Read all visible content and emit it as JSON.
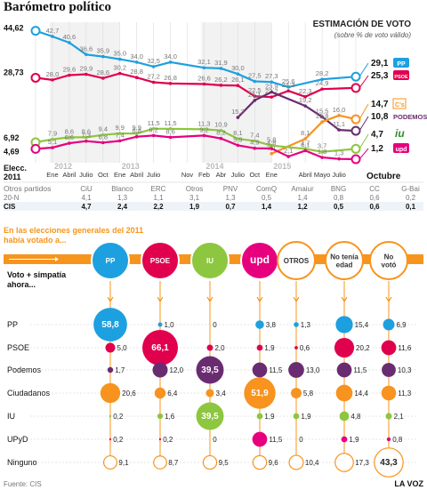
{
  "title": "Barómetro político",
  "estimation_title": "ESTIMACIÓN DE VOTO",
  "estimation_subtitle": "(sobre % de voto válido)",
  "elec_label": "Elecc.",
  "elec_year": "2011",
  "colors": {
    "pp": "#1da0e0",
    "psoe": "#e0004d",
    "podemos": "#6a2c70",
    "cs": "#f7931e",
    "iu": "#8dc63f",
    "upyd": "#e6007e",
    "otros": "#888888",
    "orange": "#f7941d"
  },
  "chart_data": {
    "type": "line",
    "title": "Barómetro político",
    "x": [
      "Elecc. 2011",
      "Ene 2012",
      "Abril",
      "Julio",
      "Oct",
      "Ene 2013",
      "Abril",
      "Julio",
      "Oct",
      "Nov",
      "Feb 2014",
      "Abr",
      "Julio",
      "Oct",
      "Ene 2015",
      "Marzo",
      "Abril",
      "Mayo",
      "Julio",
      "Octubre"
    ],
    "x_ticks": [
      "Elecc. 2011",
      "Ene",
      "Abril",
      "Julio",
      "Oct",
      "Ene",
      "Abril",
      "Julio",
      "Nov",
      "Feb",
      "Abr",
      "Julio",
      "Oct",
      "Ene",
      "Abril",
      "Mayo",
      "Julio",
      "Octubre"
    ],
    "year_labels": [
      "2012",
      "2013",
      "2014",
      "2015"
    ],
    "series": [
      {
        "name": "PP",
        "color": "#1da0e0",
        "end_label": "29,1",
        "start_label": "44,62",
        "values": [
          44.62,
          42.7,
          40.6,
          36.6,
          35.9,
          35.0,
          34.0,
          32.5,
          34.0,
          null,
          32.1,
          31.9,
          30.0,
          27.5,
          27.3,
          25.6,
          null,
          28.2,
          null,
          29.1
        ],
        "labels": [
          "44,62",
          "42,7",
          "40,6",
          "36,6",
          "35,9",
          "35,0",
          "34,0",
          "32,5",
          "34,0",
          "",
          "32,1",
          "31,9",
          "30,0",
          "27,5",
          "27,3",
          "25,6",
          "",
          "28,2",
          "",
          "29,1"
        ]
      },
      {
        "name": "PSOE",
        "color": "#e0004d",
        "end_label": "25,3",
        "start_label": "28,73",
        "values": [
          28.73,
          28.0,
          29.6,
          29.9,
          28.6,
          30.2,
          28.8,
          27.2,
          26.8,
          null,
          26.6,
          26.2,
          26.1,
          22.5,
          22.2,
          24.3,
          22.3,
          24.9,
          null,
          25.3
        ],
        "labels": [
          "28,73",
          "28,0",
          "29,6",
          "29,9",
          "28,6",
          "30,2",
          "28,8",
          "27,2",
          "26,8",
          "",
          "26,6",
          "26,2",
          "26,1",
          "22,5",
          "22,2",
          "24,3",
          "22,3",
          "24,9",
          "",
          "25,3"
        ]
      },
      {
        "name": "Podemos",
        "color": "#6a2c70",
        "end_label": "10,8",
        "values": [
          null,
          null,
          null,
          null,
          null,
          null,
          null,
          null,
          null,
          null,
          null,
          null,
          15.3,
          21.1,
          23.9,
          null,
          19.2,
          15.5,
          11.1,
          10.8
        ],
        "labels": [
          "",
          "",
          "",
          "",
          "",
          "",
          "",
          "",
          "",
          "",
          "",
          "",
          "15,3",
          "21,1",
          "23,9",
          "",
          "19,2",
          "15,5",
          "11,1",
          "10,8"
        ]
      },
      {
        "name": "Cs",
        "color": "#f7931e",
        "end_label": "14,7",
        "values": [
          null,
          null,
          null,
          null,
          null,
          null,
          null,
          null,
          null,
          null,
          null,
          null,
          null,
          null,
          3.1,
          null,
          8.1,
          13.8,
          16.0,
          14.7
        ],
        "labels": [
          "",
          "",
          "",
          "",
          "",
          "",
          "",
          "",
          "",
          "",
          "",
          "",
          "",
          "",
          "3,1",
          "",
          "8,1",
          "13,8",
          "16,0",
          "14,7"
        ]
      },
      {
        "name": "IU",
        "color": "#8dc63f",
        "end_label": "4,7",
        "start_label": "6,92",
        "values": [
          6.92,
          7.9,
          8.6,
          8.6,
          9.4,
          9.9,
          9.9,
          11.5,
          11.5,
          null,
          11.3,
          10.9,
          8.1,
          7.4,
          5.8,
          null,
          4.7,
          3.7,
          null,
          4.7
        ],
        "labels": [
          "6,92",
          "7,9",
          "8,6",
          "8,6",
          "9,4",
          "9,9",
          "9,9",
          "11,5",
          "11,5",
          "",
          "11,3",
          "10,9",
          "8,1",
          "7,4",
          "5,8",
          "",
          "4,7",
          "3,7",
          "",
          "4,7"
        ]
      },
      {
        "name": "UPyD",
        "color": "#e6007e",
        "end_label": "1,2",
        "start_label": "4,69",
        "values": [
          4.69,
          5.1,
          6.6,
          7.3,
          6.8,
          7.4,
          8.8,
          9.2,
          8.6,
          null,
          9.2,
          8.2,
          5.9,
          4.9,
          4.8,
          2.1,
          4.1,
          1.8,
          1.3,
          1.2
        ],
        "labels": [
          "4,69",
          "5,1",
          "6,6",
          "7,3",
          "6,8",
          "7,4",
          "8,8",
          "9,2",
          "8,6",
          "",
          "9,2",
          "8,2",
          "5,9",
          "4,9",
          "4,8",
          "2,1",
          "4,1",
          "1,8",
          "1,3",
          "1,2"
        ]
      }
    ],
    "otros_table": {
      "label": "Otros partidos",
      "headers": [
        "CiU",
        "Blanco",
        "ERC",
        "Otros",
        "PNV",
        "ComQ",
        "Amaiur",
        "BNG",
        "CC",
        "G-Bai"
      ],
      "rows": [
        {
          "label": "20-N",
          "values": [
            "4,1",
            "1,3",
            "1,1",
            "3,1",
            "1,3",
            "0,5",
            "1,4",
            "0,8",
            "0,6",
            "0,2"
          ]
        },
        {
          "label": "CIS",
          "values": [
            "4,7",
            "2,4",
            "2,2",
            "1,9",
            "0,7",
            "1,4",
            "1,2",
            "0,5",
            "0,6",
            "0,1"
          ]
        }
      ]
    },
    "flow": {
      "title_line1": "En las elecciones generales del 2011",
      "title_line2": "había votado a...",
      "vote_label_1": "Voto + simpatía",
      "vote_label_2": "ahora...",
      "columns": [
        "PP",
        "PSOE",
        "IU",
        "UPyD",
        "OTROS",
        "No tenía edad",
        "No votó"
      ],
      "column_lines": [
        [
          "PP"
        ],
        [
          "PSOE"
        ],
        [
          "IU"
        ],
        [
          "upd"
        ],
        [
          "OTROS"
        ],
        [
          "No tenía",
          "edad"
        ],
        [
          "No",
          "votó"
        ]
      ],
      "rows": [
        {
          "party": "PP",
          "color": "#1da0e0",
          "values": [
            "58,8",
            "1,0",
            "0",
            "3,8",
            "1,3",
            "15,4",
            "6,9"
          ]
        },
        {
          "party": "PSOE",
          "color": "#e0004d",
          "values": [
            "5,0",
            "66,1",
            "2,0",
            "1,9",
            "0,6",
            "20,2",
            "11,6"
          ]
        },
        {
          "party": "Podemos",
          "color": "#6a2c70",
          "values": [
            "1,7",
            "12,0",
            "39,5",
            "11,5",
            "13,0",
            "11,5",
            "10,3"
          ]
        },
        {
          "party": "Ciudadanos",
          "color": "#f7931e",
          "values": [
            "20,6",
            "6,4",
            "3,4",
            "51,9",
            "5,8",
            "14,4",
            "11,3"
          ]
        },
        {
          "party": "IU",
          "color": "#8dc63f",
          "values": [
            "0,2",
            "1,6",
            "39,5",
            "1,9",
            "1,9",
            "4,8",
            "2,1"
          ]
        },
        {
          "party": "UPyD",
          "color": "#e6007e",
          "values": [
            "0,2",
            "0,2",
            "0",
            "11,5",
            "0",
            "1,9",
            "0,8"
          ]
        },
        {
          "party": "Ninguno",
          "color": "#ffffff",
          "values": [
            "9,1",
            "8,7",
            "9,5",
            "9,6",
            "10,4",
            "17,3",
            "43,3"
          ]
        }
      ]
    }
  },
  "source": "Fuente: CIS",
  "brand": "LA VOZ"
}
